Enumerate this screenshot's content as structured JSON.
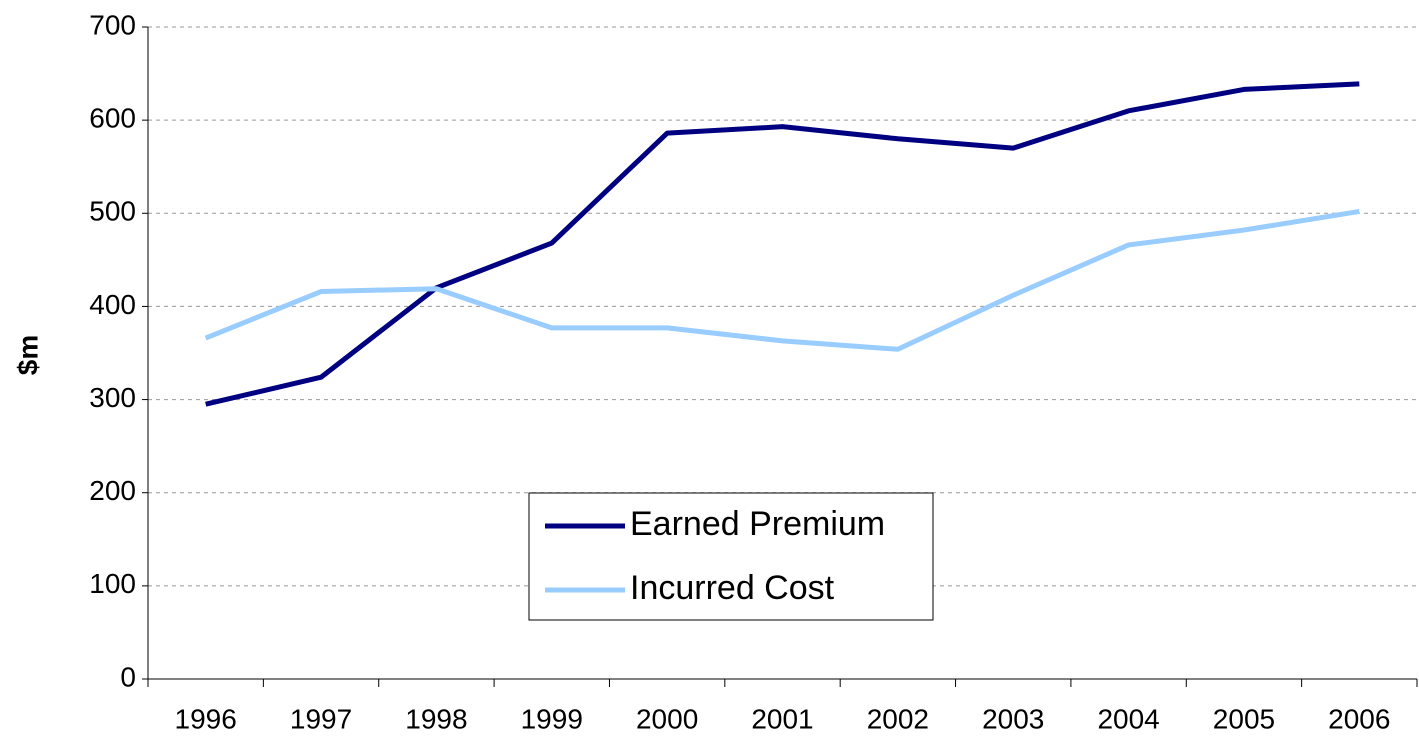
{
  "chart_data": {
    "type": "line",
    "y_label": "$m",
    "categories": [
      "1996",
      "1997",
      "1998",
      "1999",
      "2000",
      "2001",
      "2002",
      "2003",
      "2004",
      "2005",
      "2006"
    ],
    "series": [
      {
        "name": "Earned Premium",
        "color": "#000080",
        "values": [
          295,
          324,
          420,
          468,
          586,
          593,
          580,
          570,
          610,
          633,
          639
        ]
      },
      {
        "name": "Incurred Cost",
        "color": "#99ccff",
        "values": [
          366,
          416,
          419,
          377,
          377,
          363,
          354,
          412,
          466,
          482,
          502
        ]
      }
    ],
    "ylim": [
      0,
      700
    ],
    "yticks": [
      0,
      100,
      200,
      300,
      400,
      500,
      600,
      700
    ],
    "grid": true
  }
}
